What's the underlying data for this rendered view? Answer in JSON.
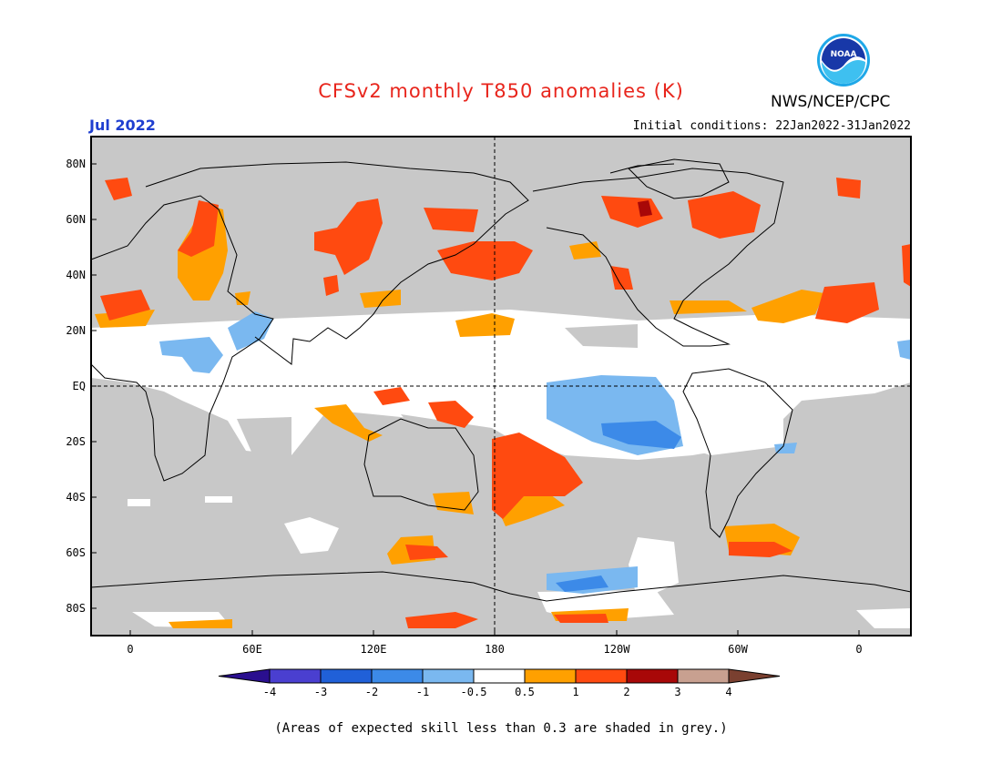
{
  "header": {
    "title": "CFSv2 monthly T850 anomalies (K)",
    "agency": "NWS/NCEP/CPC",
    "month": "Jul 2022",
    "initial_conditions": "Initial conditions: 22Jan2022-31Jan2022",
    "logo_text": "NOAA"
  },
  "axes": {
    "lat_labels": [
      "80N",
      "60N",
      "40N",
      "20N",
      "EQ",
      "20S",
      "40S",
      "60S",
      "80S"
    ],
    "lon_labels": [
      "0",
      "60E",
      "120E",
      "180",
      "120W",
      "60W",
      "0"
    ]
  },
  "legend": {
    "labels": [
      "-4",
      "-3",
      "-2",
      "-1",
      "-0.5",
      "0.5",
      "1",
      "2",
      "3",
      "4"
    ],
    "colors": [
      "#2a0f8f",
      "#4a3fd0",
      "#2060d8",
      "#3c8ae8",
      "#7ab8f0",
      "#ffffff",
      "#ffa000",
      "#ff4a10",
      "#a80808",
      "#c8a090",
      "#7a4030"
    ]
  },
  "colors": {
    "skill_mask": "#c8c8c8",
    "title": "#e8251c",
    "month": "#1f3fd0"
  },
  "footer": "(Areas of expected skill less than 0.3 are shaded in grey.)"
}
